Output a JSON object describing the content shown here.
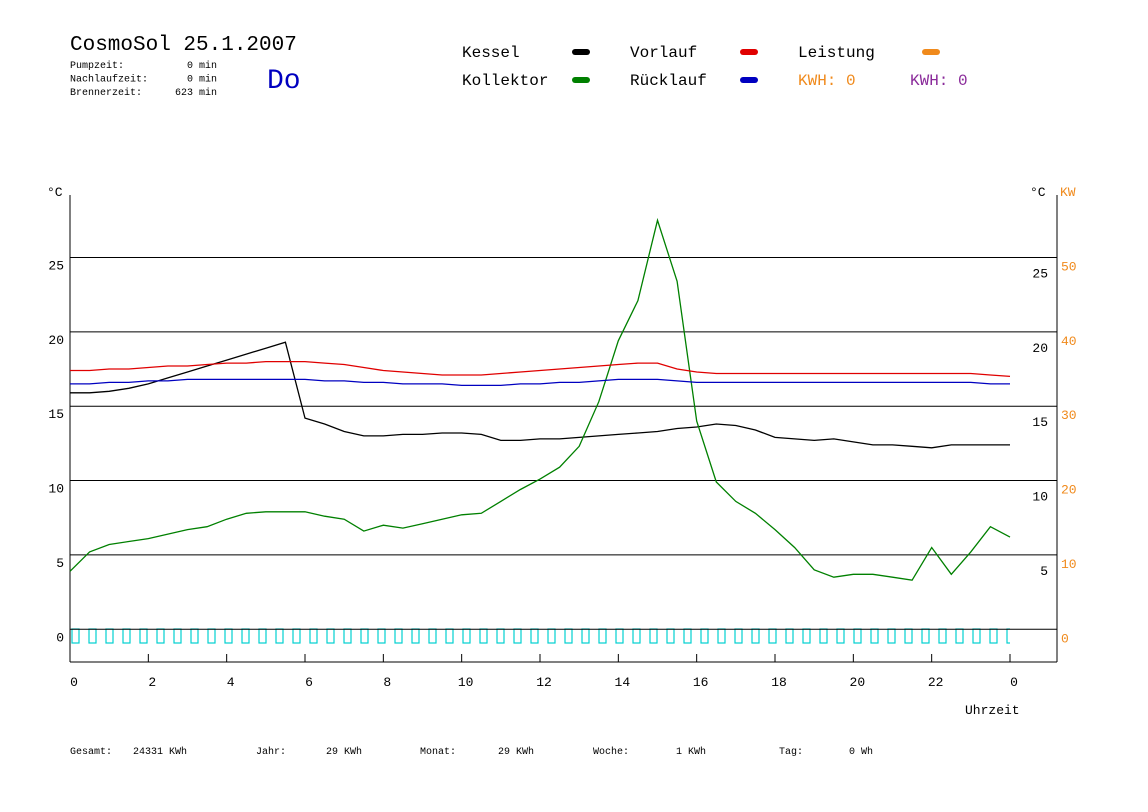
{
  "header": {
    "title": "CosmoSol 25.1.2007",
    "day": "Do",
    "stats": [
      {
        "label": "Pumpzeit:",
        "value": "0 min"
      },
      {
        "label": "Nachlaufzeit:",
        "value": "0 min"
      },
      {
        "label": "Brennerzeit:",
        "value": "623 min"
      }
    ]
  },
  "legend_extra": {
    "name": "Leistung",
    "color": "#f08a1c"
  },
  "kwh_labels": [
    {
      "text": "KWH: 0",
      "color": "#f08a1c"
    },
    {
      "text": "KWH: 0",
      "color": "#8a2a9a"
    }
  ],
  "footer": [
    {
      "label": "Gesamt:",
      "value": "24331 KWh"
    },
    {
      "label": "Jahr:",
      "value": "29 KWh"
    },
    {
      "label": "Monat:",
      "value": "29 KWh"
    },
    {
      "label": "Woche:",
      "value": "1 KWh"
    },
    {
      "label": "Tag:",
      "value": "0 Wh"
    }
  ],
  "chart_data": {
    "type": "line",
    "y_label": "°C",
    "y_label_right": "°C",
    "y2_label": "KW",
    "x_label": "Uhrzeit",
    "xlim": [
      0,
      25.2
    ],
    "xticks": [
      0,
      2,
      4,
      6,
      8,
      10,
      12,
      14,
      16,
      18,
      20,
      22,
      {
        "value": 24,
        "label": "0"
      }
    ],
    "ylim": [
      -2.2,
      29.2
    ],
    "yticks": [
      0,
      5,
      10,
      15,
      20,
      25
    ],
    "yticks_right": [
      5,
      10,
      15,
      20,
      25
    ],
    "y2lim": [
      -4.4,
      58.4
    ],
    "y2ticks": [
      0,
      10,
      20,
      30,
      40,
      50
    ],
    "y2color": "#f08a1c",
    "grid": true,
    "x": [
      0,
      0.5,
      1,
      1.5,
      2,
      2.5,
      3,
      3.5,
      4,
      4.5,
      5,
      5.5,
      6,
      6.5,
      7,
      7.5,
      8,
      8.5,
      9,
      9.5,
      10,
      10.5,
      11,
      11.5,
      12,
      12.5,
      13,
      13.5,
      14,
      14.5,
      15,
      15.5,
      16,
      16.5,
      17,
      17.5,
      18,
      18.5,
      19,
      19.5,
      20,
      20.5,
      21,
      21.5,
      22,
      22.5,
      23,
      23.5,
      24
    ],
    "series": [
      {
        "name": "Kessel",
        "color": "#000000",
        "values": [
          15.9,
          15.9,
          16.0,
          16.2,
          16.5,
          16.9,
          17.3,
          17.7,
          18.1,
          18.5,
          18.9,
          19.3,
          14.2,
          13.8,
          13.3,
          13.0,
          13.0,
          13.1,
          13.1,
          13.2,
          13.2,
          13.1,
          12.7,
          12.7,
          12.8,
          12.8,
          12.9,
          13.0,
          13.1,
          13.2,
          13.3,
          13.5,
          13.6,
          13.8,
          13.7,
          13.4,
          12.9,
          12.8,
          12.7,
          12.8,
          12.6,
          12.4,
          12.4,
          12.3,
          12.2,
          12.4,
          12.4,
          12.4,
          12.4
        ]
      },
      {
        "name": "Kollektor",
        "color": "#008000",
        "values": [
          3.9,
          5.2,
          5.7,
          5.9,
          6.1,
          6.4,
          6.7,
          6.9,
          7.4,
          7.8,
          7.9,
          7.9,
          7.9,
          7.6,
          7.4,
          6.6,
          7.0,
          6.8,
          7.1,
          7.4,
          7.7,
          7.8,
          8.6,
          9.4,
          10.1,
          10.9,
          12.3,
          15.3,
          19.4,
          22.1,
          27.5,
          23.4,
          14.0,
          9.9,
          8.6,
          7.8,
          6.7,
          5.5,
          4.0,
          3.5,
          3.7,
          3.7,
          3.5,
          3.3,
          5.5,
          3.7,
          5.2,
          6.9,
          6.2
        ]
      },
      {
        "name": "Vorlauf",
        "color": "#e00000",
        "values": [
          17.4,
          17.4,
          17.5,
          17.5,
          17.6,
          17.7,
          17.7,
          17.8,
          17.9,
          17.9,
          18.0,
          18.0,
          18.0,
          17.9,
          17.8,
          17.6,
          17.4,
          17.3,
          17.2,
          17.1,
          17.1,
          17.1,
          17.2,
          17.3,
          17.4,
          17.5,
          17.6,
          17.7,
          17.8,
          17.9,
          17.9,
          17.5,
          17.3,
          17.2,
          17.2,
          17.2,
          17.2,
          17.2,
          17.2,
          17.2,
          17.2,
          17.2,
          17.2,
          17.2,
          17.2,
          17.2,
          17.2,
          17.1,
          17.0
        ]
      },
      {
        "name": "Rücklauf",
        "color": "#0000c0",
        "values": [
          16.5,
          16.5,
          16.6,
          16.6,
          16.7,
          16.7,
          16.8,
          16.8,
          16.8,
          16.8,
          16.8,
          16.8,
          16.8,
          16.7,
          16.7,
          16.6,
          16.6,
          16.5,
          16.5,
          16.5,
          16.4,
          16.4,
          16.4,
          16.5,
          16.5,
          16.6,
          16.6,
          16.7,
          16.8,
          16.8,
          16.8,
          16.7,
          16.6,
          16.6,
          16.6,
          16.6,
          16.6,
          16.6,
          16.6,
          16.6,
          16.6,
          16.6,
          16.6,
          16.6,
          16.6,
          16.6,
          16.6,
          16.5,
          16.5
        ]
      }
    ]
  }
}
